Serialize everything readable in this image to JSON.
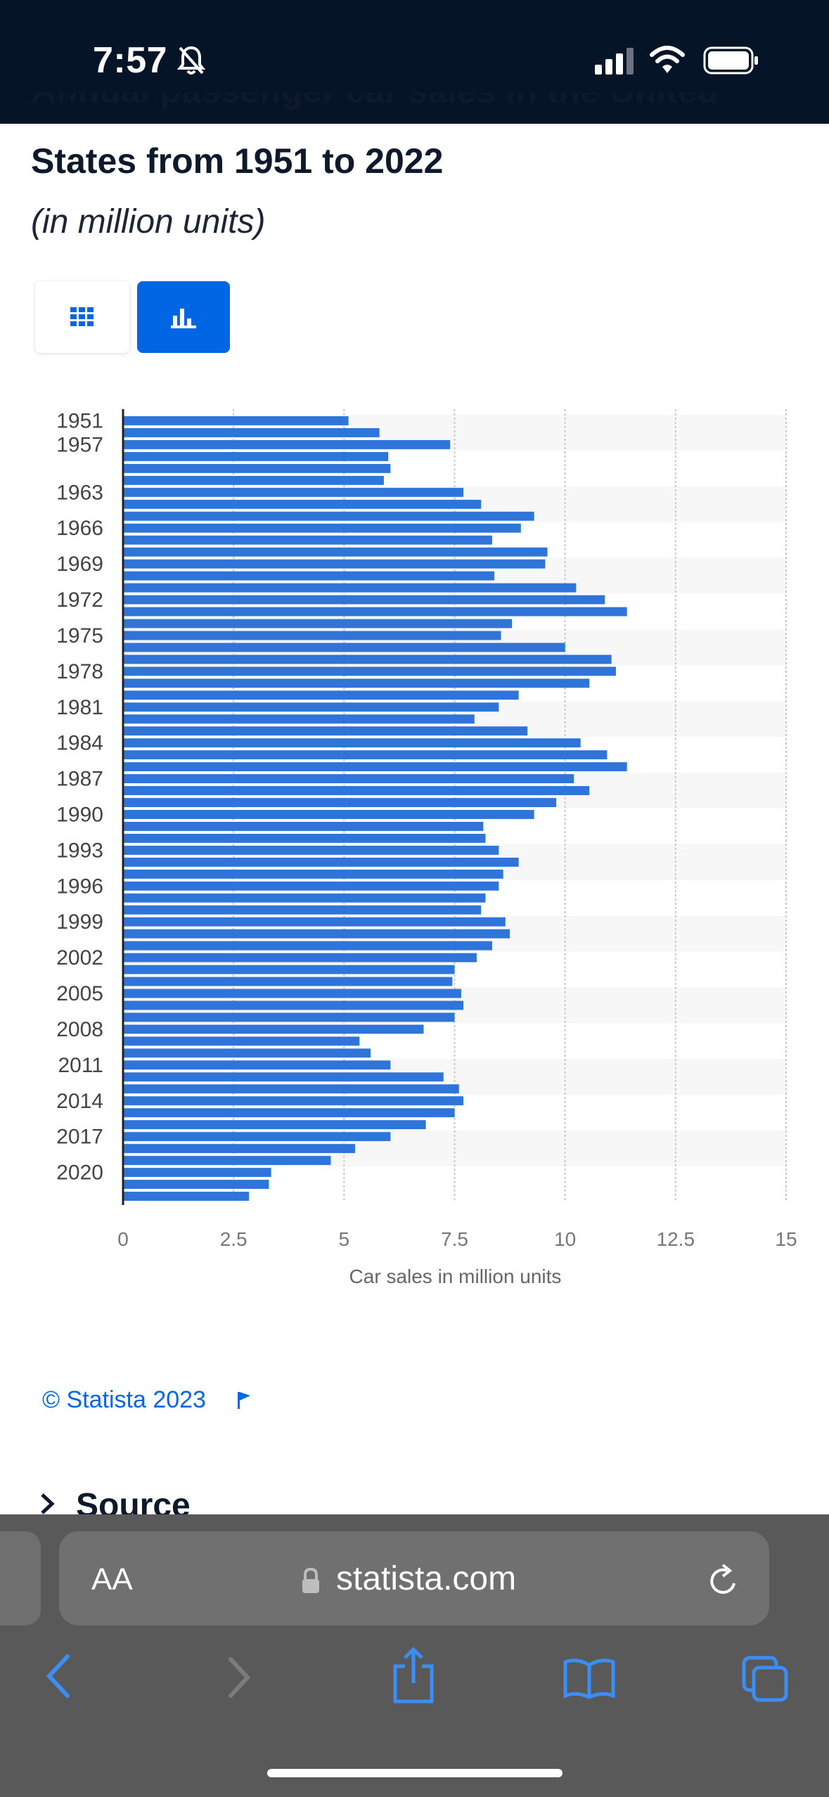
{
  "status_bar": {
    "time": "7:57"
  },
  "page": {
    "title_partial": "Annual passenger car sales in the United",
    "title": "States from 1951 to 2022",
    "subtitle": "(in million units)",
    "copyright": "© Statista 2023",
    "source_label": "Source"
  },
  "browser": {
    "aa_label": "AA",
    "url": "statista.com"
  },
  "colors": {
    "bar": "#2f74d8",
    "accent": "#0066e4",
    "status_bg": "#061428",
    "browser_bg": "#595959"
  },
  "chart_data": {
    "type": "bar",
    "orientation": "horizontal",
    "xlabel": "Car sales in million units",
    "xlim": [
      0,
      15
    ],
    "x_ticks": [
      "0",
      "2.5",
      "5",
      "7.5",
      "10",
      "12.5",
      "15"
    ],
    "y_tick_labels": [
      "1951",
      "1957",
      "1963",
      "1966",
      "1969",
      "1972",
      "1975",
      "1978",
      "1981",
      "1984",
      "1987",
      "1990",
      "1993",
      "1996",
      "1999",
      "2002",
      "2005",
      "2008",
      "2011",
      "2014",
      "2017",
      "2020"
    ],
    "categories": [
      "1951",
      "1954",
      "1957",
      "1960",
      "1961",
      "1962",
      "1963",
      "1964",
      "1965",
      "1966",
      "1967",
      "1968",
      "1969",
      "1970",
      "1971",
      "1972",
      "1973",
      "1974",
      "1975",
      "1976",
      "1977",
      "1978",
      "1979",
      "1980",
      "1981",
      "1982",
      "1983",
      "1984",
      "1985",
      "1986",
      "1987",
      "1988",
      "1989",
      "1990",
      "1991",
      "1992",
      "1993",
      "1994",
      "1995",
      "1996",
      "1997",
      "1998",
      "1999",
      "2000",
      "2001",
      "2002",
      "2003",
      "2004",
      "2005",
      "2006",
      "2007",
      "2008",
      "2009",
      "2010",
      "2011",
      "2012",
      "2013",
      "2014",
      "2015",
      "2016",
      "2017",
      "2018",
      "2019",
      "2020",
      "2021",
      "2022"
    ],
    "values": [
      5.1,
      5.8,
      7.4,
      6.0,
      6.05,
      5.9,
      7.7,
      8.1,
      9.3,
      9.0,
      8.35,
      9.6,
      9.55,
      8.4,
      10.25,
      10.9,
      11.4,
      8.8,
      8.55,
      10.0,
      11.05,
      11.15,
      10.55,
      8.95,
      8.5,
      7.95,
      9.15,
      10.35,
      10.95,
      11.4,
      10.2,
      10.55,
      9.8,
      9.3,
      8.15,
      8.2,
      8.5,
      8.95,
      8.6,
      8.5,
      8.2,
      8.1,
      8.65,
      8.75,
      8.35,
      8.0,
      7.5,
      7.45,
      7.65,
      7.7,
      7.5,
      6.8,
      5.35,
      5.6,
      6.05,
      7.25,
      7.6,
      7.7,
      7.5,
      6.85,
      6.05,
      5.25,
      4.7,
      3.35,
      3.3,
      2.85
    ],
    "grid": "vertical dotted",
    "alternating_row_bands": true
  }
}
